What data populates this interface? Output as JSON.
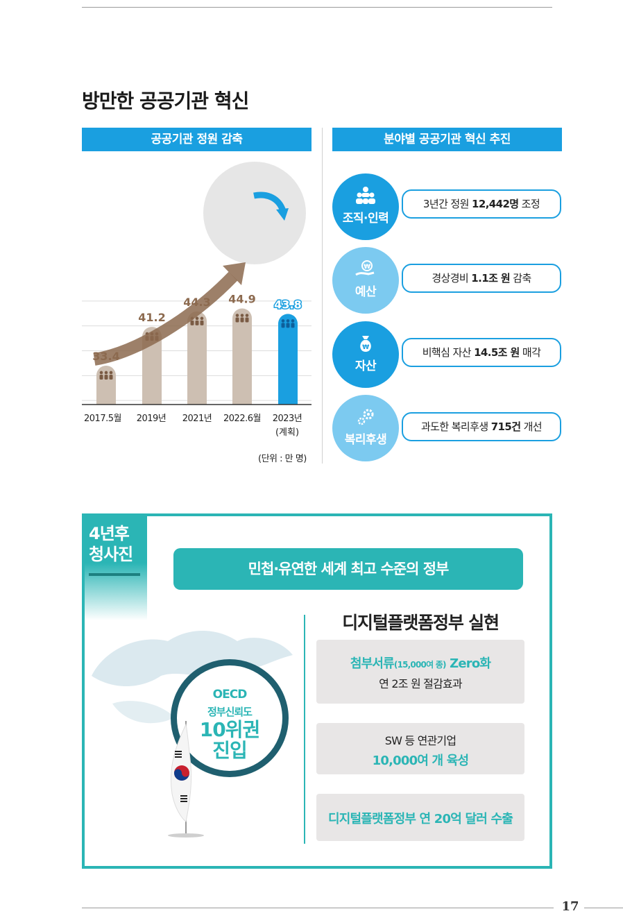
{
  "section_title": "방만한 공공기관 혁신",
  "left_panel": {
    "header": "공공기관 정원 감축",
    "unit_note": "(단위 : 만 명)"
  },
  "right_panel": {
    "header": "분야별 공공기관 혁신 추진",
    "items": [
      {
        "category": "조직·인력",
        "icon": "people-group-icon",
        "pre": "3년간 정원 ",
        "bold": "12,442명",
        "post": " 조정"
      },
      {
        "category": "예산",
        "icon": "hand-coin-icon",
        "pre": "경상경비 ",
        "bold": "1.1조 원",
        "post": " 감축"
      },
      {
        "category": "자산",
        "icon": "money-bag-icon",
        "pre": "비핵심 자산 ",
        "bold": "14.5조 원",
        "post": " 매각"
      },
      {
        "category": "복리후생",
        "icon": "gears-icon",
        "pre": "과도한 복리후생 ",
        "bold": "715건",
        "post": " 개선"
      }
    ]
  },
  "chart_data": {
    "type": "bar",
    "categories": [
      "2017.5월",
      "2019년",
      "2021년",
      "2022.6월",
      "2023년"
    ],
    "category_sublabels": [
      "",
      "",
      "",
      "",
      "(계획)"
    ],
    "values": [
      33.4,
      41.2,
      44.3,
      44.9,
      43.8
    ],
    "value_labels": [
      "33.4",
      "41.2",
      "44.3",
      "44.9",
      "43.8"
    ],
    "highlight_index": 4,
    "colors": {
      "bar": "#cdbfb2",
      "highlight": "#1a9fe0",
      "label": "#8c6a4f",
      "arrow": "#8c6a4f"
    },
    "ylim": [
      20,
      50
    ],
    "grid": true
  },
  "bottom": {
    "tag": [
      "4년후",
      "청사진"
    ],
    "slogan": "민첩·유연한 세계 최고 수준의 정부",
    "oecd": {
      "line1": "OECD",
      "line2": "정부신뢰도",
      "line3": "10위권",
      "line4": "진입"
    },
    "digital_title": "디지털플랫폼정부 실현",
    "box1": {
      "teal_a": "첨부서류",
      "teal_small": "(15,000여 종)",
      "teal_b": " Zero화",
      "dark": "연 2조 원 절감효과"
    },
    "box2": {
      "dark": "SW 등 연관기업",
      "teal": "10,000여 개 육성"
    },
    "box3": {
      "teal": "디지털플랫폼정부 연 20억 달러 수출"
    }
  },
  "page_number": "17",
  "colors": {
    "blue": "#1a9fe0",
    "light_blue": "#7ccaf0",
    "teal": "#2bb5b5",
    "dark_teal": "#1f5f6f"
  }
}
